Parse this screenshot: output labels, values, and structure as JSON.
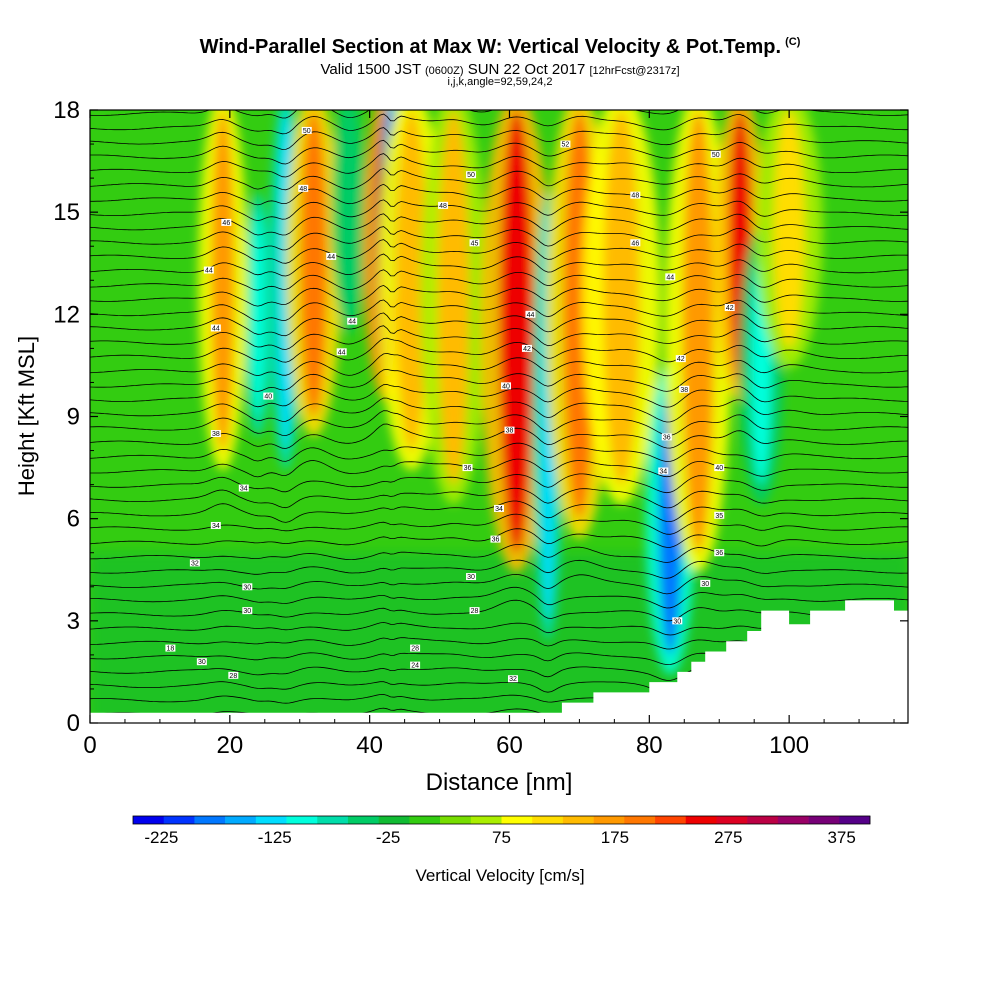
{
  "header": {
    "title": "Wind-Parallel Section at Max W: Vertical Velocity & Pot.Temp.",
    "copyright_mark": "(C)",
    "valid_prefix": "Valid 1500 JST",
    "valid_utc": "(0600Z)",
    "valid_date": "SUN 22 Oct 2017",
    "forecast": "[12hrFcst@2317z]",
    "indices": "i,j,k,angle=92,59,24,2"
  },
  "chart_data": {
    "type": "heatmap",
    "title": "Wind-Parallel Section at Max W: Vertical Velocity & Pot.Temp.",
    "xlabel": "Distance [nm]",
    "ylabel": "Height [Kft MSL]",
    "xlim": [
      0,
      117
    ],
    "ylim": [
      0,
      18
    ],
    "xticks": [
      0,
      20,
      40,
      60,
      80,
      100
    ],
    "yticks": [
      0,
      3,
      6,
      9,
      12,
      15,
      18
    ],
    "colorbar": {
      "label": "Vertical Velocity [cm/s]",
      "ticks": [
        -225,
        -125,
        -25,
        75,
        175,
        275,
        375
      ],
      "range": [
        -250,
        400
      ],
      "colors": [
        "#0000ee",
        "#0033ff",
        "#0077ff",
        "#00aaff",
        "#00ddff",
        "#00ffdd",
        "#00ddaa",
        "#00cc66",
        "#11bb33",
        "#33cc11",
        "#77dd00",
        "#aaee00",
        "#ffff00",
        "#ffdd00",
        "#ffbb00",
        "#ff9900",
        "#ff7700",
        "#ff4400",
        "#ee0000",
        "#dd0022",
        "#bb0044",
        "#990066",
        "#770077",
        "#550088"
      ]
    },
    "velocity_features": [
      {
        "x": 28,
        "y_bottom": 8,
        "y_top": 18,
        "value": -140,
        "width_nm": 1.5
      },
      {
        "x": 24,
        "y_bottom": 9,
        "y_top": 15,
        "value": -110,
        "width_nm": 1.3
      },
      {
        "x": 19,
        "y_bottom": 8,
        "y_top": 18,
        "value": 180,
        "width_nm": 2.2
      },
      {
        "x": 32,
        "y_bottom": 9,
        "y_top": 18,
        "value": 200,
        "width_nm": 2.5
      },
      {
        "x": 37,
        "y_bottom": 12,
        "y_top": 18,
        "value": -60,
        "width_nm": 1.5
      },
      {
        "x": 42.5,
        "y_bottom": 10,
        "y_top": 18,
        "value": 330,
        "width_nm": 2.2
      },
      {
        "x": 43.2,
        "y_bottom": 13,
        "y_top": 18,
        "value": -210,
        "width_nm": 0.8
      },
      {
        "x": 46,
        "y_bottom": 8,
        "y_top": 18,
        "value": 150,
        "width_nm": 3
      },
      {
        "x": 52,
        "y_bottom": 7,
        "y_top": 18,
        "value": 130,
        "width_nm": 3
      },
      {
        "x": 61,
        "y_bottom": 5,
        "y_top": 18,
        "value": 260,
        "width_nm": 3.2
      },
      {
        "x": 65.5,
        "y_bottom": 3,
        "y_top": 15,
        "value": -120,
        "width_nm": 1.4
      },
      {
        "x": 70,
        "y_bottom": 6,
        "y_top": 18,
        "value": 190,
        "width_nm": 3
      },
      {
        "x": 76,
        "y_bottom": 7,
        "y_top": 18,
        "value": 140,
        "width_nm": 3.5
      },
      {
        "x": 83,
        "y_bottom": 2,
        "y_top": 10,
        "value": -170,
        "width_nm": 2.2
      },
      {
        "x": 87,
        "y_bottom": 5,
        "y_top": 18,
        "value": 180,
        "width_nm": 3
      },
      {
        "x": 93,
        "y_bottom": 10,
        "y_top": 18,
        "value": 260,
        "width_nm": 2.2
      },
      {
        "x": 96,
        "y_bottom": 7,
        "y_top": 14,
        "value": -90,
        "width_nm": 2
      },
      {
        "x": 100,
        "y_bottom": 11,
        "y_top": 18,
        "value": 110,
        "width_nm": 3
      }
    ],
    "terrain": [
      [
        0,
        0.3
      ],
      [
        67.5,
        0.3
      ],
      [
        67.5,
        0.6
      ],
      [
        72,
        0.6
      ],
      [
        72,
        0.9
      ],
      [
        80,
        0.9
      ],
      [
        80,
        1.2
      ],
      [
        84,
        1.2
      ],
      [
        84,
        1.5
      ],
      [
        86,
        1.5
      ],
      [
        86,
        1.8
      ],
      [
        88,
        1.8
      ],
      [
        88,
        2.1
      ],
      [
        91,
        2.1
      ],
      [
        91,
        2.4
      ],
      [
        94,
        2.4
      ],
      [
        94,
        2.7
      ],
      [
        96,
        2.7
      ],
      [
        96,
        3.3
      ],
      [
        100,
        3.3
      ],
      [
        100,
        2.9
      ],
      [
        103,
        2.9
      ],
      [
        103,
        3.3
      ],
      [
        108,
        3.3
      ],
      [
        108,
        3.6
      ],
      [
        115,
        3.6
      ],
      [
        115,
        3.3
      ],
      [
        117,
        3.3
      ]
    ],
    "theta_contour_labels": [
      {
        "x": 31,
        "y": 17.4,
        "text": "50"
      },
      {
        "x": 30.5,
        "y": 15.7,
        "text": "48"
      },
      {
        "x": 19.5,
        "y": 14.7,
        "text": "46"
      },
      {
        "x": 17,
        "y": 13.3,
        "text": "44"
      },
      {
        "x": 18,
        "y": 11.6,
        "text": "44"
      },
      {
        "x": 34.5,
        "y": 13.7,
        "text": "44"
      },
      {
        "x": 37.5,
        "y": 11.8,
        "text": "44"
      },
      {
        "x": 36,
        "y": 10.9,
        "text": "44"
      },
      {
        "x": 25.5,
        "y": 9.6,
        "text": "40"
      },
      {
        "x": 18,
        "y": 8.5,
        "text": "38"
      },
      {
        "x": 22,
        "y": 6.9,
        "text": "34"
      },
      {
        "x": 18,
        "y": 5.8,
        "text": "34"
      },
      {
        "x": 15,
        "y": 4.7,
        "text": "32"
      },
      {
        "x": 22.5,
        "y": 4.0,
        "text": "30"
      },
      {
        "x": 22.5,
        "y": 3.3,
        "text": "30"
      },
      {
        "x": 11.5,
        "y": 2.2,
        "text": "18"
      },
      {
        "x": 16,
        "y": 1.8,
        "text": "30"
      },
      {
        "x": 20.5,
        "y": 1.4,
        "text": "28"
      },
      {
        "x": 46.5,
        "y": 2.2,
        "text": "28"
      },
      {
        "x": 46.5,
        "y": 1.7,
        "text": "24"
      },
      {
        "x": 60.5,
        "y": 1.3,
        "text": "32"
      },
      {
        "x": 55,
        "y": 3.3,
        "text": "28"
      },
      {
        "x": 54.5,
        "y": 4.3,
        "text": "30"
      },
      {
        "x": 58,
        "y": 5.4,
        "text": "36"
      },
      {
        "x": 58.5,
        "y": 6.3,
        "text": "34"
      },
      {
        "x": 54,
        "y": 7.5,
        "text": "36"
      },
      {
        "x": 60,
        "y": 8.6,
        "text": "38"
      },
      {
        "x": 59.5,
        "y": 9.9,
        "text": "40"
      },
      {
        "x": 62.5,
        "y": 11.0,
        "text": "42"
      },
      {
        "x": 63,
        "y": 12.0,
        "text": "44"
      },
      {
        "x": 55,
        "y": 14.1,
        "text": "45"
      },
      {
        "x": 50.5,
        "y": 15.2,
        "text": "48"
      },
      {
        "x": 54.5,
        "y": 16.1,
        "text": "50"
      },
      {
        "x": 68,
        "y": 17.0,
        "text": "52"
      },
      {
        "x": 89.5,
        "y": 16.7,
        "text": "50"
      },
      {
        "x": 78,
        "y": 15.5,
        "text": "48"
      },
      {
        "x": 78,
        "y": 14.1,
        "text": "46"
      },
      {
        "x": 83,
        "y": 13.1,
        "text": "44"
      },
      {
        "x": 91.5,
        "y": 12.2,
        "text": "42"
      },
      {
        "x": 84.5,
        "y": 10.7,
        "text": "42"
      },
      {
        "x": 85,
        "y": 9.8,
        "text": "38"
      },
      {
        "x": 82.5,
        "y": 8.4,
        "text": "36"
      },
      {
        "x": 82,
        "y": 7.4,
        "text": "34"
      },
      {
        "x": 90,
        "y": 7.5,
        "text": "40"
      },
      {
        "x": 90,
        "y": 6.1,
        "text": "35"
      },
      {
        "x": 90,
        "y": 5.0,
        "text": "36"
      },
      {
        "x": 88,
        "y": 4.1,
        "text": "30"
      },
      {
        "x": 84,
        "y": 3.0,
        "text": "30"
      }
    ]
  }
}
